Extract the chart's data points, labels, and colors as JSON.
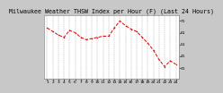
{
  "title": "Milwaukee Weather THSW Index per Hour (F) (Last 24 Hours)",
  "bg_color": "#c8c8c8",
  "plot_bg_color": "#ffffff",
  "line_color": "#dd0000",
  "grid_color": "#888888",
  "text_color": "#000000",
  "title_color": "#000000",
  "y_values": [
    65,
    62,
    59,
    57,
    63,
    61,
    57,
    55,
    56,
    57,
    58,
    58,
    65,
    71,
    67,
    64,
    62,
    57,
    52,
    46,
    38,
    32,
    37,
    34
  ],
  "x_labels": [
    "1",
    "2",
    "3",
    "4",
    "5",
    "6",
    "7",
    "8",
    "9",
    "10",
    "11",
    "12",
    "13",
    "14",
    "15",
    "16",
    "17",
    "18",
    "19",
    "20",
    "21",
    "22",
    "23",
    "24"
  ],
  "ylim": [
    22,
    76
  ],
  "yticks": [
    31,
    41,
    51,
    61,
    71
  ],
  "ytick_labels": [
    "31",
    "41",
    "51",
    "61",
    "71"
  ],
  "title_fontsize": 4.8,
  "tick_fontsize": 3.2,
  "linewidth": 0.7,
  "markersize": 1.5
}
